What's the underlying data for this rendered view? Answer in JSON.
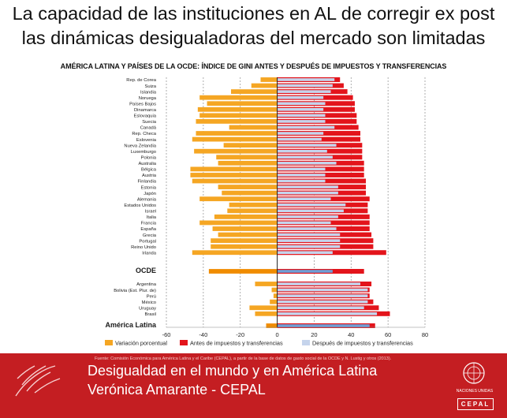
{
  "slide": {
    "title_line1": "La capacidad de las instituciones  en AL de corregir ex post",
    "title_line2": "las dinámicas desigualadoras del mercado son limitadas"
  },
  "chart_data": {
    "type": "bar",
    "orientation": "horizontal",
    "title": "AMÉRICA LATINA Y PAÍSES DE LA OCDE: ÍNDICE DE GINI ANTES Y DESPUÉS DE IMPUESTOS Y TRANSFERENCIAS",
    "xlim": [
      -60,
      80
    ],
    "xticks": [
      -60,
      -40,
      -20,
      0,
      20,
      40,
      60,
      80
    ],
    "grid": true,
    "legend_position": "bottom",
    "colors": {
      "variacion": "#f5a623",
      "antes": "#e3141b",
      "despues": "#c5d4ec",
      "ocde_variacion": "#f08c00",
      "ocde_despues": "#6e9fd6"
    },
    "legend": [
      "Variación porcentual",
      "Antes de impuestos y transferencias",
      "Después de impuestos y transferencias"
    ],
    "groups": [
      {
        "name": "oecd",
        "categories": [
          "Rep. de Corea",
          "Suiza",
          "Islandia",
          "Noruega",
          "Países Bajos",
          "Dinamarca",
          "Eslovaquia",
          "Suecia",
          "Canadá",
          "Rep. Checa",
          "Eslovenia",
          "Nueva Zelandia",
          "Luxemburgo",
          "Polonia",
          "Australia",
          "Bélgica",
          "Austria",
          "Finlandia",
          "Estonia",
          "Japón",
          "Alemania",
          "Estados Unidos",
          "Israel",
          "Italia",
          "Francia",
          "España",
          "Grecia",
          "Portugal",
          "Reino Unido",
          "Irlanda"
        ],
        "series": [
          {
            "name": "Variación porcentual",
            "values": [
              -9,
              -14,
              -25,
              -42,
              -38,
              -43,
              -42,
              -44,
              -26,
              -44,
              -46,
              -29,
              -45,
              -33,
              -32,
              -47,
              -47,
              -46,
              -32,
              -30,
              -42,
              -26,
              -27,
              -34,
              -42,
              -35,
              -32,
              -36,
              -36,
              -46
            ]
          },
          {
            "name": "Antes de impuestos y transferencias",
            "values": [
              34,
              36,
              38,
              41,
              42,
              42,
              43,
              43,
              44,
              45,
              45,
              46,
              46,
              46,
              47,
              47,
              47,
              48,
              48,
              48,
              50,
              49,
              49,
              50,
              50,
              50,
              51,
              52,
              52,
              59
            ]
          },
          {
            "name": "Después de impuestos y transferencias",
            "values": [
              31,
              30,
              29,
              25,
              26,
              25,
              26,
              26,
              31,
              25,
              24,
              32,
              27,
              30,
              32,
              26,
              26,
              26,
              33,
              33,
              29,
              37,
              36,
              33,
              29,
              32,
              34,
              34,
              34,
              30
            ]
          }
        ]
      },
      {
        "name": "oecd-average",
        "categories": [
          "OCDE"
        ],
        "series": [
          {
            "name": "Variación porcentual",
            "values": [
              -37
            ]
          },
          {
            "name": "Antes de impuestos y transferencias",
            "values": [
              47
            ]
          },
          {
            "name": "Después de impuestos y transferencias",
            "values": [
              30
            ]
          }
        ]
      },
      {
        "name": "latin-america",
        "categories": [
          "Argentina",
          "Bolivia (Est. Plur. de)",
          "Perú",
          "México",
          "Uruguay",
          "Brasil"
        ],
        "series": [
          {
            "name": "Variación porcentual",
            "values": [
              -12,
              -3,
              -2,
              -4,
              -15,
              -12
            ]
          },
          {
            "name": "Antes de impuestos y transferencias",
            "values": [
              51,
              50,
              50,
              52,
              55,
              61
            ]
          },
          {
            "name": "Después de impuestos y transferencias",
            "values": [
              45,
              49,
              49,
              49,
              47,
              54
            ]
          }
        ]
      },
      {
        "name": "latin-america-average",
        "categories": [
          "América Latina"
        ],
        "series": [
          {
            "name": "Variación porcentual",
            "values": [
              -6
            ]
          },
          {
            "name": "Antes de impuestos y transferencias",
            "values": [
              53
            ]
          },
          {
            "name": "Después de impuestos y transferencias",
            "values": [
              50
            ]
          }
        ]
      }
    ]
  },
  "footer": {
    "source": "Fuente: Comisión Económica para América Latina y el Caribe (CEPAL), a partir de la base de datos de gasto social de la OCDE y N. Lustig y otros (2013).",
    "line1": "Desigualdad en el mundo y en América Latina",
    "line2": "Verónica Amarante - CEPAL",
    "un_label": "NACIONES UNIDAS",
    "cepal_label": "CEPAL"
  }
}
